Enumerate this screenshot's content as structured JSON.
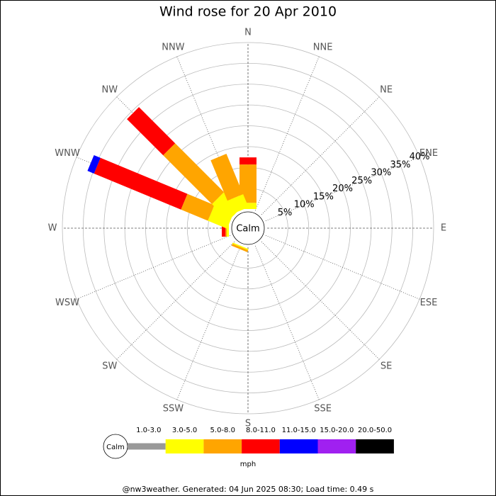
{
  "chart_data": {
    "type": "windrose",
    "title": "Wind rose for 20 Apr 2010",
    "calm_label": "Calm",
    "unit": "mph",
    "footer": "@nw3weather. Generated: 04 Jun 2025 08:30; Load time: 0.49 s",
    "categories": [
      "N",
      "NNE",
      "NE",
      "ENE",
      "E",
      "ESE",
      "SE",
      "SSE",
      "S",
      "SSW",
      "SW",
      "WSW",
      "W",
      "WNW",
      "NW",
      "NNW"
    ],
    "series": [
      {
        "name": "1.0-3.0",
        "color": "#999999",
        "values": [
          0,
          0,
          0,
          0,
          0,
          0,
          0,
          0,
          0,
          0,
          0,
          0,
          0,
          0,
          0,
          0
        ]
      },
      {
        "name": "3.0-5.0",
        "color": "#ffff00",
        "values": [
          1.5,
          0,
          0,
          0,
          0,
          0,
          0,
          0,
          0,
          0.3,
          0,
          0,
          0.5,
          5,
          5.6,
          3.4
        ]
      },
      {
        "name": "5.0-8.0",
        "color": "#ffa500",
        "values": [
          9.2,
          0,
          0,
          0,
          0,
          0,
          0,
          0,
          0,
          0.5,
          0,
          0,
          0.3,
          7,
          16.6,
          10.5
        ]
      },
      {
        "name": "8.0-11.0",
        "color": "#ff0000",
        "values": [
          1.7,
          0,
          0,
          0,
          0,
          0,
          0,
          0,
          0,
          0,
          0,
          0,
          0.9,
          22.6,
          12.3,
          0
        ]
      },
      {
        "name": "11.0-15.0",
        "color": "#0000ff",
        "values": [
          0,
          0,
          0,
          0,
          0,
          0,
          0,
          0,
          0,
          0,
          0,
          0,
          0,
          1.7,
          0,
          0
        ]
      },
      {
        "name": "15.0-20.0",
        "color": "#a020f0",
        "values": [
          0,
          0,
          0,
          0,
          0,
          0,
          0,
          0,
          0,
          0,
          0,
          0,
          0,
          0,
          0,
          0
        ]
      },
      {
        "name": "20.0-50.0",
        "color": "#000000",
        "values": [
          0,
          0,
          0,
          0,
          0,
          0,
          0,
          0,
          0,
          0,
          0,
          0,
          0,
          0,
          0,
          0
        ]
      }
    ],
    "ylim": [
      0,
      40
    ],
    "yticks": [
      {
        "value": 5,
        "label": "5%"
      },
      {
        "value": 10,
        "label": "10%"
      },
      {
        "value": 15,
        "label": "15%"
      },
      {
        "value": 20,
        "label": "20%"
      },
      {
        "value": 25,
        "label": "25%"
      },
      {
        "value": 30,
        "label": "30%"
      },
      {
        "value": 35,
        "label": "35%"
      },
      {
        "value": 40,
        "label": "40%"
      }
    ],
    "grid": true
  }
}
